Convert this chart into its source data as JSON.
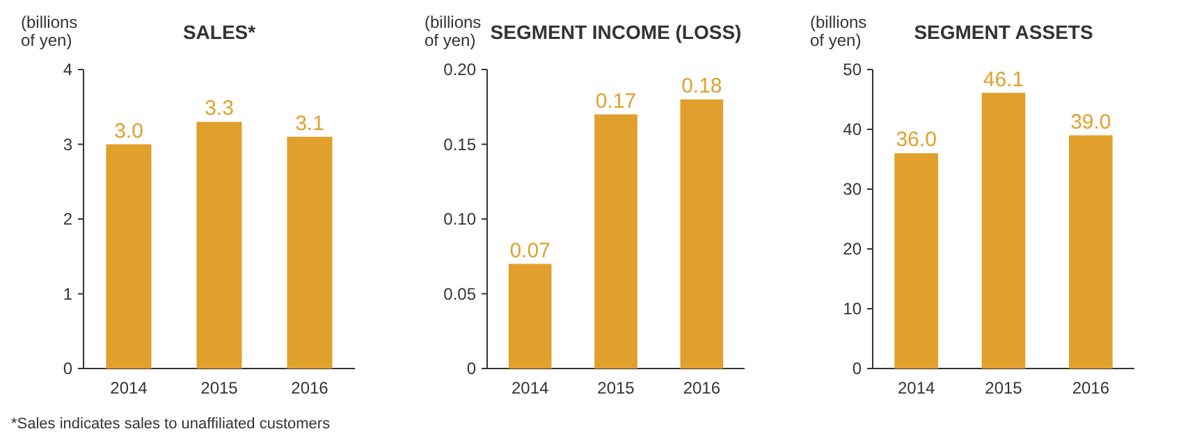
{
  "chart_data": [
    {
      "type": "bar",
      "title": "SALES*",
      "ylabel": "(billions of yen)",
      "categories": [
        "2014",
        "2015",
        "2016"
      ],
      "values": [
        3.0,
        3.3,
        3.1
      ],
      "value_labels": [
        "3.0",
        "3.3",
        "3.1"
      ],
      "color": "#e0a02b",
      "ylim": [
        0,
        4
      ],
      "yticks": [
        0,
        1,
        2,
        3,
        4
      ],
      "grid": false,
      "annotations": [
        "*Sales indicates sales to unaffiliated customers"
      ]
    },
    {
      "type": "bar",
      "title": "SEGMENT INCOME (LOSS)",
      "ylabel": "(billions of yen)",
      "categories": [
        "2014",
        "2015",
        "2016"
      ],
      "values": [
        0.07,
        0.17,
        0.18
      ],
      "value_labels": [
        "0.07",
        "0.17",
        "0.18"
      ],
      "color": "#e0a02b",
      "ylim": [
        0,
        0.2
      ],
      "yticks": [
        0,
        0.05,
        {
          "value": 0.1,
          "label": "0.10"
        },
        0.15,
        {
          "value": 0.2,
          "label": "0.20"
        }
      ],
      "grid": false
    },
    {
      "type": "bar",
      "title": "SEGMENT ASSETS",
      "ylabel": "(billions of yen)",
      "categories": [
        "2014",
        "2015",
        "2016"
      ],
      "values": [
        36.0,
        46.1,
        39.0
      ],
      "value_labels": [
        "36.0",
        "46.1",
        "39.0"
      ],
      "color": "#e0a02b",
      "ylim": [
        0,
        50
      ],
      "yticks": [
        0,
        10,
        20,
        30,
        40,
        50
      ],
      "grid": false
    }
  ]
}
